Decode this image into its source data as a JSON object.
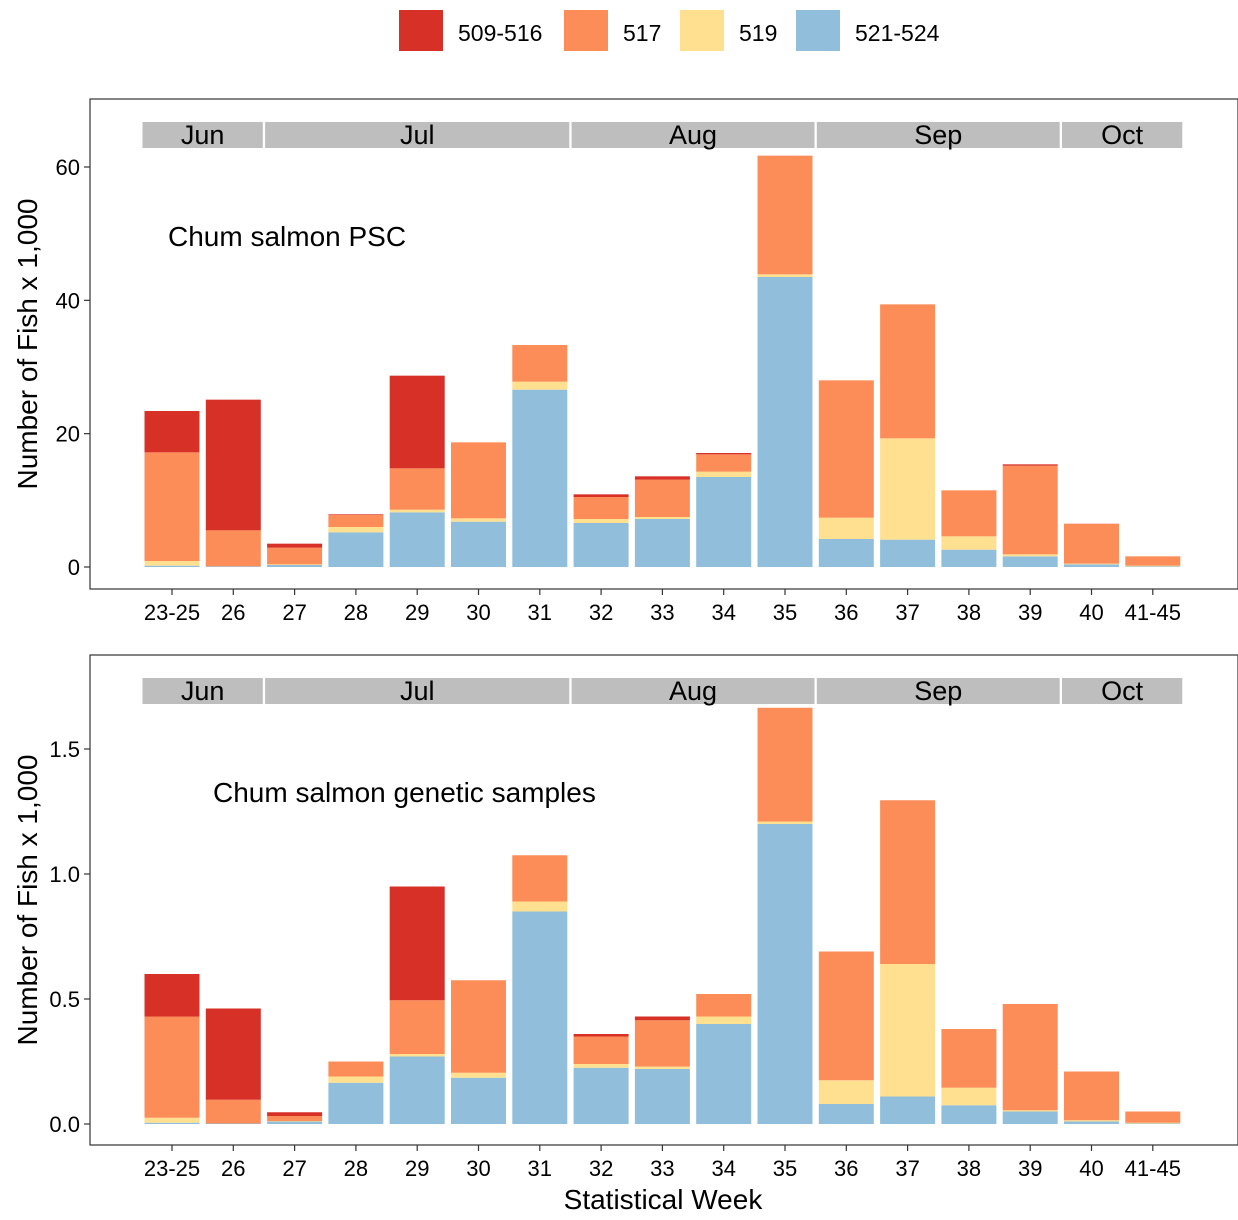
{
  "legend": [
    {
      "label": "509-516",
      "color": "#D73027"
    },
    {
      "label": "517",
      "color": "#FC8D59"
    },
    {
      "label": "519",
      "color": "#FEE090"
    },
    {
      "label": "521-524",
      "color": "#91BFDB"
    }
  ],
  "colors": {
    "strip": "#BEBEBE",
    "axis": "#333333",
    "panel_border": "#333333"
  },
  "xlabel": "Statistical Week",
  "ylabel": "Number of Fish x 1,000",
  "categories": [
    "23-25",
    "26",
    "27",
    "28",
    "29",
    "30",
    "31",
    "32",
    "33",
    "34",
    "35",
    "36",
    "37",
    "38",
    "39",
    "40",
    "41-45"
  ],
  "months": [
    {
      "label": "Jun",
      "from": "23-25",
      "to": "26"
    },
    {
      "label": "Jul",
      "from": "27",
      "to": "31"
    },
    {
      "label": "Aug",
      "from": "32",
      "to": "35"
    },
    {
      "label": "Sep",
      "from": "36",
      "to": "39"
    },
    {
      "label": "Oct",
      "from": "40",
      "to": "41-45"
    }
  ],
  "chart_data": [
    {
      "type": "bar",
      "stacked": true,
      "title": "Chum salmon PSC",
      "ylabel": "Number of Fish x 1,000",
      "xlabel": "",
      "ylim": [
        0,
        70
      ],
      "yticks": [
        0,
        20,
        40,
        60
      ],
      "ytick_labels": [
        "0",
        "20",
        "40",
        "60"
      ],
      "categories": [
        "23-25",
        "26",
        "27",
        "28",
        "29",
        "30",
        "31",
        "32",
        "33",
        "34",
        "35",
        "36",
        "37",
        "38",
        "39",
        "40",
        "41-45"
      ],
      "series": [
        {
          "name": "521-524",
          "values": [
            0.2,
            0.1,
            0.3,
            5.2,
            8.2,
            6.8,
            26.6,
            6.6,
            7.2,
            13.5,
            43.5,
            4.2,
            4.1,
            2.6,
            1.6,
            0.4,
            0.1
          ]
        },
        {
          "name": "519",
          "values": [
            0.7,
            0,
            0.1,
            0.8,
            0.4,
            0.5,
            1.2,
            0.6,
            0.3,
            0.8,
            0.4,
            3.2,
            15.2,
            2.0,
            0.3,
            0.1,
            0.1
          ]
        },
        {
          "name": "517",
          "values": [
            16.3,
            5.4,
            2.5,
            1.8,
            6.2,
            11.4,
            5.5,
            3.3,
            5.6,
            2.6,
            17.8,
            20.6,
            20.1,
            6.9,
            13.3,
            6.0,
            1.4
          ]
        },
        {
          "name": "509-516",
          "values": [
            6.2,
            19.6,
            0.6,
            0.1,
            13.9,
            0,
            0,
            0.4,
            0.5,
            0.2,
            0,
            0,
            0,
            0,
            0.2,
            0,
            0
          ]
        }
      ]
    },
    {
      "type": "bar",
      "stacked": true,
      "title": "Chum salmon genetic samples",
      "ylabel": "Number of Fish x 1,000",
      "xlabel": "Statistical Week",
      "ylim": [
        0,
        1.8
      ],
      "yticks": [
        0,
        0.5,
        1.0,
        1.5
      ],
      "ytick_labels": [
        "0.0",
        "0.5",
        "1.0",
        "1.5"
      ],
      "categories": [
        "23-25",
        "26",
        "27",
        "28",
        "29",
        "30",
        "31",
        "32",
        "33",
        "34",
        "35",
        "36",
        "37",
        "38",
        "39",
        "40",
        "41-45"
      ],
      "series": [
        {
          "name": "521-524",
          "values": [
            0.005,
            0.002,
            0.01,
            0.165,
            0.27,
            0.185,
            0.85,
            0.225,
            0.22,
            0.4,
            1.2,
            0.08,
            0.11,
            0.075,
            0.05,
            0.01,
            0.002
          ]
        },
        {
          "name": "519",
          "values": [
            0.02,
            0,
            0.002,
            0.025,
            0.01,
            0.02,
            0.04,
            0.015,
            0.01,
            0.03,
            0.01,
            0.095,
            0.53,
            0.07,
            0.005,
            0.005,
            0.003
          ]
        },
        {
          "name": "517",
          "values": [
            0.405,
            0.095,
            0.02,
            0.06,
            0.215,
            0.37,
            0.185,
            0.11,
            0.185,
            0.09,
            0.455,
            0.515,
            0.655,
            0.235,
            0.425,
            0.195,
            0.045
          ]
        },
        {
          "name": "509-516",
          "values": [
            0.17,
            0.365,
            0.015,
            0,
            0.455,
            0,
            0,
            0.01,
            0.015,
            0,
            0,
            0,
            0,
            0,
            0,
            0,
            0
          ]
        }
      ]
    }
  ]
}
